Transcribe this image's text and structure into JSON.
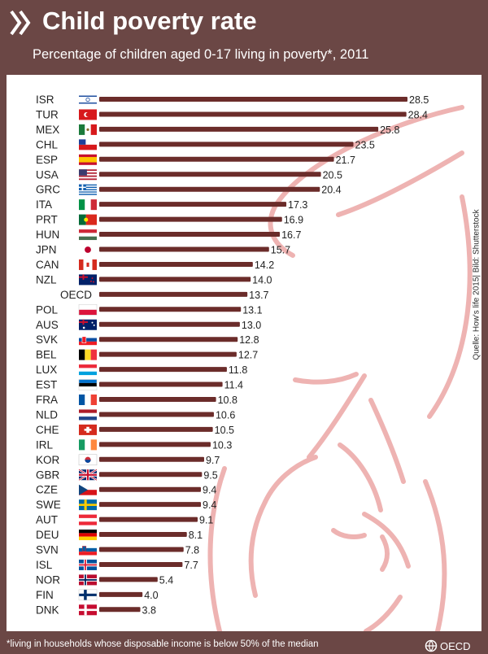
{
  "header": {
    "title": "Child poverty rate",
    "subtitle": "Percentage of children aged 0-17 living in poverty*, 2011"
  },
  "source": "Quelle: How's life 2015| Bild: Shutterstock",
  "footer": {
    "note": "*living in households whose disposable income is below 50% of the median",
    "logo_text": "OECD"
  },
  "colors": {
    "background": "#6b4745",
    "bar": "#6b2c2a",
    "illustration": "#eeb3b2"
  },
  "chart_data": {
    "type": "bar",
    "orientation": "horizontal",
    "title": "Child poverty rate",
    "subtitle": "Percentage of children aged 0-17 living in poverty*, 2011",
    "xlim": [
      0,
      28.5
    ],
    "categories": [
      "ISR",
      "TUR",
      "MEX",
      "CHL",
      "ESP",
      "USA",
      "GRC",
      "ITA",
      "PRT",
      "HUN",
      "JPN",
      "CAN",
      "NZL",
      "OECD",
      "POL",
      "AUS",
      "SVK",
      "BEL",
      "LUX",
      "EST",
      "FRA",
      "NLD",
      "CHE",
      "IRL",
      "KOR",
      "GBR",
      "CZE",
      "SWE",
      "AUT",
      "DEU",
      "SVN",
      "ISL",
      "NOR",
      "FIN",
      "DNK"
    ],
    "values": [
      28.5,
      28.4,
      25.8,
      23.5,
      21.7,
      20.5,
      20.4,
      17.3,
      16.9,
      16.7,
      15.7,
      14.2,
      14.0,
      13.7,
      13.1,
      13.0,
      12.8,
      12.7,
      11.8,
      11.4,
      10.8,
      10.6,
      10.5,
      10.3,
      9.7,
      9.5,
      9.4,
      9.4,
      9.1,
      8.1,
      7.8,
      7.7,
      5.4,
      4.0,
      3.8
    ],
    "value_labels": [
      "28.5",
      "28.4",
      "25.8",
      "23.5",
      "21.7",
      "20.5",
      "20.4",
      "17.3",
      "16.9",
      "16.7",
      "15.7",
      "14.2",
      "14.0",
      "13.7",
      "13.1",
      "13.0",
      "12.8",
      "12.7",
      "11.8",
      "11.4",
      "10.8",
      "10.6",
      "10.5",
      "10.3",
      "9.7",
      "9.5",
      "9.4",
      "9.4",
      "9.1",
      "8.1",
      "7.8",
      "7.7",
      "5.4",
      "4.0",
      "3.8"
    ],
    "flags": [
      "ISR",
      "TUR",
      "MEX",
      "CHL",
      "ESP",
      "USA",
      "GRC",
      "ITA",
      "PRT",
      "HUN",
      "JPN",
      "CAN",
      "NZL",
      "",
      "POL",
      "AUS",
      "SVK",
      "BEL",
      "LUX",
      "EST",
      "FRA",
      "NLD",
      "CHE",
      "IRL",
      "KOR",
      "GBR",
      "CZE",
      "SWE",
      "AUT",
      "DEU",
      "SVN",
      "ISL",
      "NOR",
      "FIN",
      "DNK"
    ]
  }
}
